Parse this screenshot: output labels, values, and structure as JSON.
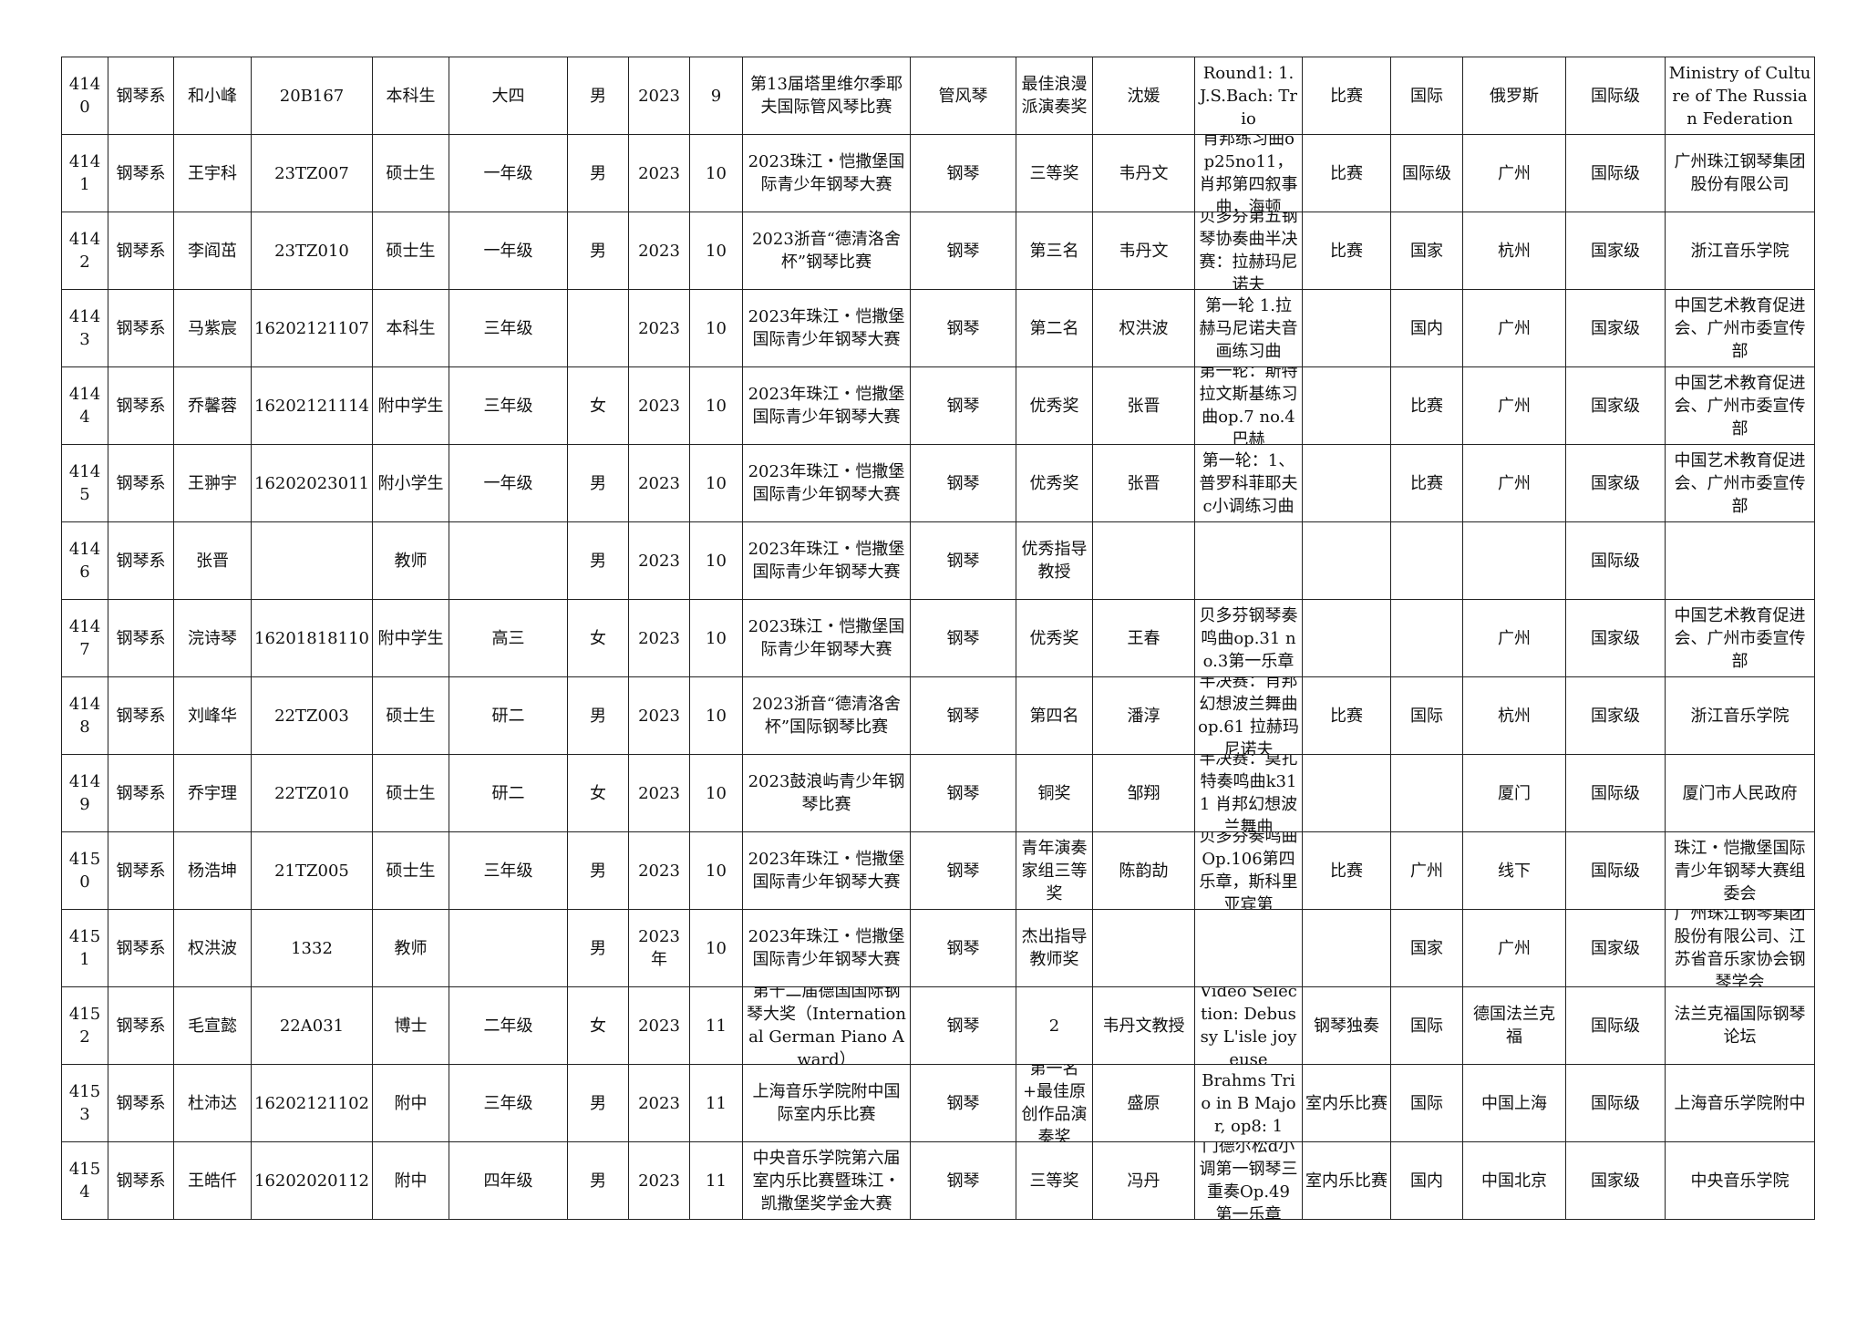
{
  "table": {
    "rows": [
      [
        "4140",
        "钢琴系",
        "和小峰",
        "20B167",
        "本科生",
        "大四",
        "男",
        "2023",
        "9",
        "第13届塔里维尔季耶夫国际管风琴比赛",
        "管风琴",
        "最佳浪漫派演奏奖",
        "沈媛",
        "Round1: 1. J.S.Bach: Trio",
        "比赛",
        "国际",
        "俄罗斯",
        "国际级",
        "Ministry of Culture of The Russian Federation"
      ],
      [
        "4141",
        "钢琴系",
        "王宇科",
        "23TZ007",
        "硕士生",
        "一年级",
        "男",
        "2023",
        "10",
        "2023珠江・恺撒堡国际青少年钢琴大赛",
        "钢琴",
        "三等奖",
        "韦丹文",
        "肖邦练习曲op25no11，肖邦第四叙事曲，海顿",
        "比赛",
        "国际级",
        "广州",
        "国际级",
        "广州珠江钢琴集团股份有限公司"
      ],
      [
        "4142",
        "钢琴系",
        "李阎茁",
        "23TZ010",
        "硕士生",
        "一年级",
        "男",
        "2023",
        "10",
        "2023浙音“德清洛舍杯”钢琴比赛",
        "钢琴",
        "第三名",
        "韦丹文",
        "贝多芬第五钢琴协奏曲半决赛：拉赫玛尼诺夫",
        "比赛",
        "国家",
        "杭州",
        "国家级",
        "浙江音乐学院"
      ],
      [
        "4143",
        "钢琴系",
        "马紫宸",
        "16202121107",
        "本科生",
        "三年级",
        null,
        "2023",
        "10",
        "2023年珠江・恺撒堡国际青少年钢琴大赛",
        "钢琴",
        "第二名",
        "权洪波",
        "第一轮 1.拉赫马尼诺夫音画练习曲",
        null,
        "国内",
        "广州",
        "国家级",
        "中国艺术教育促进会、广州市委宣传部"
      ],
      [
        "4144",
        "钢琴系",
        "乔馨蓉",
        "16202121114",
        "附中学生",
        "三年级",
        "女",
        "2023",
        "10",
        "2023年珠江・恺撒堡国际青少年钢琴大赛",
        "钢琴",
        "优秀奖",
        "张晋",
        "第一轮：斯特拉文斯基练习曲op.7 no.4 巴赫",
        null,
        "比赛",
        "广州",
        "国家级",
        "中国艺术教育促进会、广州市委宣传部"
      ],
      [
        "4145",
        "钢琴系",
        "王翀宇",
        "16202023011",
        "附小学生",
        "一年级",
        "男",
        "2023",
        "10",
        "2023年珠江・恺撒堡国际青少年钢琴大赛",
        "钢琴",
        "优秀奖",
        "张晋",
        "第一轮：1、普罗科菲耶夫c小调练习曲",
        null,
        "比赛",
        "广州",
        "国家级",
        "中国艺术教育促进会、广州市委宣传部"
      ],
      [
        "4146",
        "钢琴系",
        "张晋",
        null,
        "教师",
        null,
        "男",
        "2023",
        "10",
        "2023年珠江・恺撒堡国际青少年钢琴大赛",
        "钢琴",
        "优秀指导教授",
        null,
        null,
        null,
        null,
        null,
        "国际级",
        null
      ],
      [
        "4147",
        "钢琴系",
        "浣诗琴",
        "16201818110",
        "附中学生",
        "高三",
        "女",
        "2023",
        "10",
        "2023珠江・恺撒堡国际青少年钢琴大赛",
        "钢琴",
        "优秀奖",
        "王春",
        "贝多芬钢琴奏鸣曲op.31 no.3第一乐章",
        null,
        null,
        "广州",
        "国家级",
        "中国艺术教育促进会、广州市委宣传部"
      ],
      [
        "4148",
        "钢琴系",
        "刘峰华",
        "22TZ003",
        "硕士生",
        "研二",
        "男",
        "2023",
        "10",
        "2023浙音“德清洛舍杯”国际钢琴比赛",
        "钢琴",
        "第四名",
        "潘淳",
        "半决赛：肖邦幻想波兰舞曲op.61 拉赫玛尼诺夫",
        "比赛",
        "国际",
        "杭州",
        "国家级",
        "浙江音乐学院"
      ],
      [
        "4149",
        "钢琴系",
        "乔宇理",
        "22TZ010",
        "硕士生",
        "研二",
        "女",
        "2023",
        "10",
        "2023鼓浪屿青少年钢琴比赛",
        "钢琴",
        "铜奖",
        "邹翔",
        "半决赛：莫扎特奏鸣曲k311 肖邦幻想波兰舞曲",
        null,
        null,
        "厦门",
        "国际级",
        "厦门市人民政府"
      ],
      [
        "4150",
        "钢琴系",
        "杨浩坤",
        "21TZ005",
        "硕士生",
        "三年级",
        "男",
        "2023",
        "10",
        "2023年珠江・恺撒堡国际青少年钢琴大赛",
        "钢琴",
        "青年演奏家组三等奖",
        "陈韵劼",
        "贝多芬奏鸣曲Op.106第四乐章，斯科里亚宾第",
        "比赛",
        "广州",
        "线下",
        "国际级",
        "珠江・恺撒堡国际青少年钢琴大赛组委会"
      ],
      [
        "4151",
        "钢琴系",
        "权洪波",
        "1332",
        "教师",
        null,
        "男",
        "2023年",
        "10",
        "2023年珠江・恺撒堡国际青少年钢琴大赛",
        "钢琴",
        "杰出指导教师奖",
        null,
        null,
        null,
        "国家",
        "广州",
        "国家级",
        "广州珠江钢琴集团股份有限公司、江苏省音乐家协会钢琴学会"
      ],
      [
        "4152",
        "钢琴系",
        "毛宣懿",
        "22A031",
        "博士",
        "二年级",
        "女",
        "2023",
        "11",
        "第十二届德国国际钢琴大奖（International German Piano Award）",
        "钢琴",
        "2",
        "韦丹文教授",
        "Video Selection: Debussy L'isle joyeuse",
        "钢琴独奏",
        "国际",
        "德国法兰克福",
        "国际级",
        "法兰克福国际钢琴论坛"
      ],
      [
        "4153",
        "钢琴系",
        "杜沛达",
        "16202121102",
        "附中",
        "三年级",
        "男",
        "2023",
        "11",
        "上海音乐学院附中国际室内乐比赛",
        "钢琴",
        "第一名+最佳原创作品演奏奖",
        "盛原",
        "Brahms Trio in B Major, op8: 1",
        "室内乐比赛",
        "国际",
        "中国上海",
        "国际级",
        "上海音乐学院附中"
      ],
      [
        "4154",
        "钢琴系",
        "王皓仟",
        "16202020112",
        "附中",
        "四年级",
        "男",
        "2023",
        "11",
        "中央音乐学院第六届室内乐比赛暨珠江・凯撒堡奖学金大赛",
        "钢琴",
        "三等奖",
        "冯丹",
        "门德尔松d小调第一钢琴三重奏Op.49 第一乐章",
        "室内乐比赛",
        "国内",
        "中国北京",
        "国家级",
        "中央音乐学院"
      ]
    ]
  }
}
